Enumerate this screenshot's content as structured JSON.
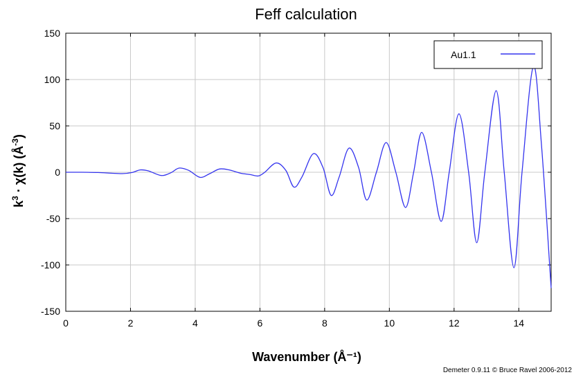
{
  "chart_data": {
    "type": "line",
    "title": "Feff calculation",
    "xlabel": "Wavenumber   (Å⁻¹)",
    "ylabel_parts": {
      "prefix": "k",
      "sup1": "3",
      "mid": " · χ(k)   (Å",
      "sup2": "-3",
      "suffix": ")"
    },
    "xlim": [
      0,
      15
    ],
    "ylim": [
      -150,
      150
    ],
    "xticks": [
      0,
      2,
      4,
      6,
      8,
      10,
      12,
      14
    ],
    "yticks": [
      150,
      100,
      50,
      0,
      -50,
      -100,
      -150
    ],
    "grid": true,
    "legend": {
      "placement": "top-right",
      "entries": [
        "Au1.1"
      ]
    },
    "series": [
      {
        "name": "Au1.1",
        "color": "#3333ee",
        "points": [
          [
            0.0,
            0
          ],
          [
            0.5,
            0
          ],
          [
            1.0,
            -0.3
          ],
          [
            1.4,
            -1
          ],
          [
            1.75,
            -1.5
          ],
          [
            2.05,
            -0.3
          ],
          [
            2.3,
            2.5
          ],
          [
            2.55,
            1.5
          ],
          [
            2.95,
            -3.5
          ],
          [
            3.25,
            -0.5
          ],
          [
            3.5,
            4.5
          ],
          [
            3.8,
            2
          ],
          [
            4.15,
            -5.5
          ],
          [
            4.45,
            -1.5
          ],
          [
            4.75,
            3.5
          ],
          [
            5.05,
            2.5
          ],
          [
            5.4,
            -1
          ],
          [
            5.7,
            -2.5
          ],
          [
            5.95,
            -4
          ],
          [
            6.15,
            0
          ],
          [
            6.5,
            10
          ],
          [
            6.8,
            2
          ],
          [
            7.05,
            -16
          ],
          [
            7.3,
            -5
          ],
          [
            7.65,
            20
          ],
          [
            7.95,
            5
          ],
          [
            8.2,
            -25
          ],
          [
            8.45,
            -5
          ],
          [
            8.75,
            26
          ],
          [
            9.05,
            5
          ],
          [
            9.3,
            -30
          ],
          [
            9.6,
            0
          ],
          [
            9.9,
            32
          ],
          [
            10.2,
            0
          ],
          [
            10.5,
            -38
          ],
          [
            10.75,
            0
          ],
          [
            11.0,
            43
          ],
          [
            11.3,
            0
          ],
          [
            11.6,
            -53
          ],
          [
            11.85,
            0
          ],
          [
            12.15,
            63
          ],
          [
            12.45,
            0
          ],
          [
            12.7,
            -76
          ],
          [
            12.95,
            0
          ],
          [
            13.3,
            88
          ],
          [
            13.55,
            0
          ],
          [
            13.85,
            -103
          ],
          [
            14.1,
            0
          ],
          [
            14.45,
            114
          ],
          [
            14.7,
            30
          ],
          [
            15.0,
            -125
          ]
        ]
      }
    ],
    "footer": "Demeter 0.9.11 © Bruce Ravel 2006-2012"
  }
}
